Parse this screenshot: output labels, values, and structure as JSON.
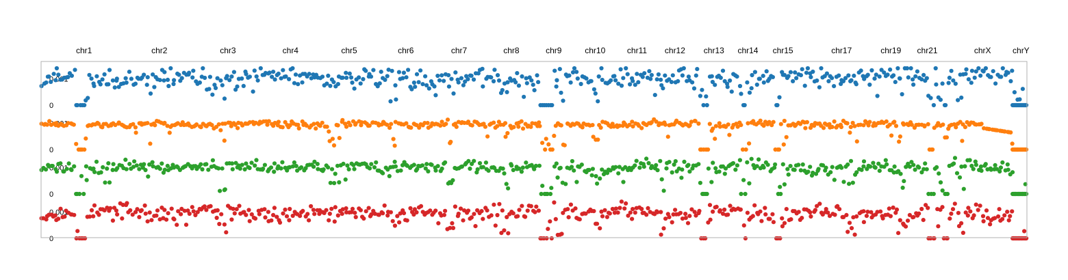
{
  "chart_data": {
    "type": "scatter",
    "title": "",
    "xlabel": "",
    "ylabel": "",
    "tracks_ylim": [
      0,
      0.0014
    ],
    "y_tick_labels": [
      "0.001",
      "0"
    ],
    "chromosomes": [
      {
        "name": "chr1",
        "start": 0.0,
        "end": 0.0435
      },
      {
        "name": "chr2",
        "start": 0.0435,
        "end": 0.1122
      },
      {
        "name": "chr3",
        "start": 0.1122,
        "end": 0.184
      },
      {
        "name": "chr4",
        "start": 0.184,
        "end": 0.2955
      },
      {
        "name": "chr5",
        "start": 0.2955,
        "end": 0.357
      },
      {
        "name": "chr6",
        "start": 0.357,
        "end": 0.416
      },
      {
        "name": "chr7",
        "start": 0.416,
        "end": 0.4705
      },
      {
        "name": "chr8",
        "start": 0.4705,
        "end": 0.522
      },
      {
        "name": "chr9",
        "start": 0.522,
        "end": 0.529
      },
      {
        "name": "chr10",
        "start": 0.529,
        "end": 0.564
      },
      {
        "name": "chr11",
        "start": 0.564,
        "end": 0.632
      },
      {
        "name": "chr12",
        "start": 0.632,
        "end": 0.6765
      },
      {
        "name": "chr13",
        "start": 0.6765,
        "end": 0.7155
      },
      {
        "name": "chr14",
        "start": 0.7155,
        "end": 0.7505
      },
      {
        "name": "chr15",
        "start": 0.7505,
        "end": 0.822
      },
      {
        "name": "chr17",
        "start": 0.822,
        "end": 0.8735
      },
      {
        "name": "chr19",
        "start": 0.8735,
        "end": 0.913
      },
      {
        "name": "chr21",
        "start": 0.913,
        "end": 0.932
      },
      {
        "name": "chrX",
        "start": 0.932,
        "end": 0.9855
      },
      {
        "name": "chrY",
        "start": 0.9855,
        "end": 1.0
      }
    ],
    "label_positions": [
      0.0435,
      0.12,
      0.1895,
      0.253,
      0.3125,
      0.37,
      0.424,
      0.477,
      0.52,
      0.562,
      0.6045,
      0.643,
      0.6825,
      0.717,
      0.7525,
      0.812,
      0.862,
      0.899,
      0.955,
      0.994
    ],
    "dropouts": [
      [
        0.035,
        0.045
      ],
      [
        0.506,
        0.52
      ],
      [
        0.6685,
        0.6765
      ],
      [
        0.71,
        0.7155
      ],
      [
        0.7445,
        0.7505
      ],
      [
        0.9,
        0.906
      ],
      [
        0.9155,
        0.92
      ],
      [
        0.9855,
        1.0
      ]
    ],
    "series": [
      {
        "color": "#1f77b4",
        "level": 0.00103,
        "spread": 0.00036,
        "seed": 11,
        "style": "wide"
      },
      {
        "color": "#ff7f0e",
        "level": 0.00096,
        "spread": 0.00012,
        "seed": 23,
        "style": "tight"
      },
      {
        "color": "#2ca02c",
        "level": 0.00102,
        "spread": 0.00022,
        "seed": 37,
        "style": "medium"
      },
      {
        "color": "#d62728",
        "level": 0.00097,
        "spread": 0.0003,
        "seed": 53,
        "style": "wide"
      }
    ],
    "points_per_track": 520,
    "grid": false,
    "legend": "none"
  }
}
